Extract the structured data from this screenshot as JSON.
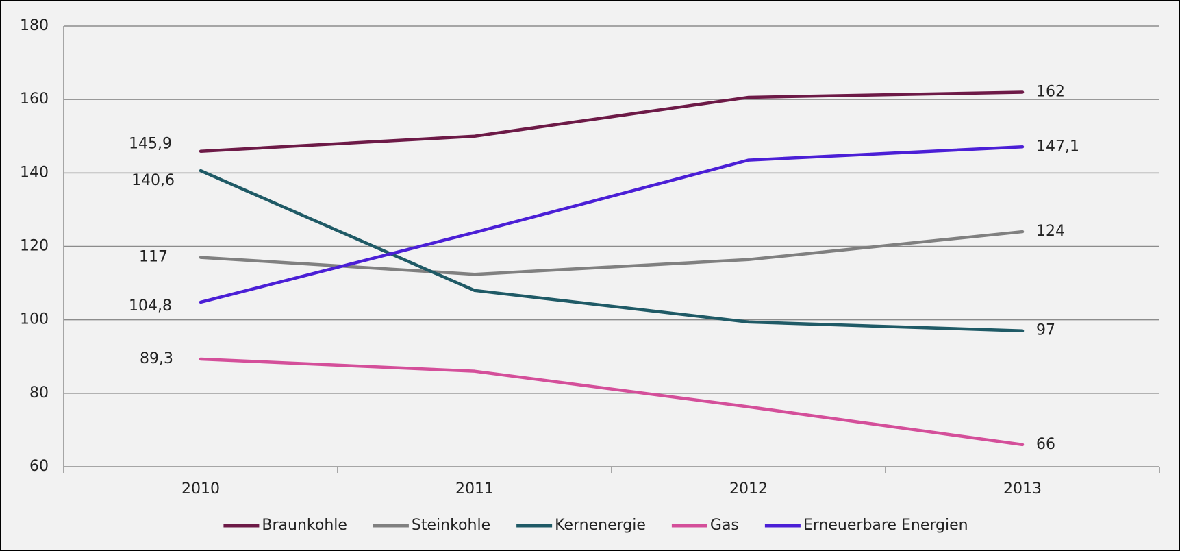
{
  "chart_data": {
    "type": "line",
    "categories": [
      "2010",
      "2011",
      "2012",
      "2013"
    ],
    "series": [
      {
        "name": "Braunkohle",
        "color": "#6d1a47",
        "values": [
          145.9,
          150,
          160.6,
          162
        ],
        "value_labels": [
          "145,9",
          null,
          null,
          "162"
        ]
      },
      {
        "name": "Steinkohle",
        "color": "#808080",
        "values": [
          117,
          112.4,
          116.4,
          124
        ],
        "value_labels": [
          "117",
          null,
          null,
          "124"
        ]
      },
      {
        "name": "Kernenergie",
        "color": "#1f5a66",
        "values": [
          140.6,
          108,
          99.4,
          97
        ],
        "value_labels": [
          "140,6",
          null,
          null,
          "97"
        ]
      },
      {
        "name": "Gas",
        "color": "#d44f9a",
        "values": [
          89.3,
          86,
          76.3,
          66
        ],
        "value_labels": [
          "89,3",
          null,
          null,
          "66"
        ]
      },
      {
        "name": "Erneuerbare Energien",
        "color": "#4b1fd6",
        "values": [
          104.8,
          123.8,
          143.5,
          147.1
        ],
        "value_labels": [
          "104,8",
          null,
          null,
          "147,1"
        ]
      }
    ],
    "ylim": [
      60,
      180
    ],
    "yticks": [
      60,
      80,
      100,
      120,
      140,
      160,
      180
    ],
    "grid": true,
    "legend": "bottom"
  }
}
